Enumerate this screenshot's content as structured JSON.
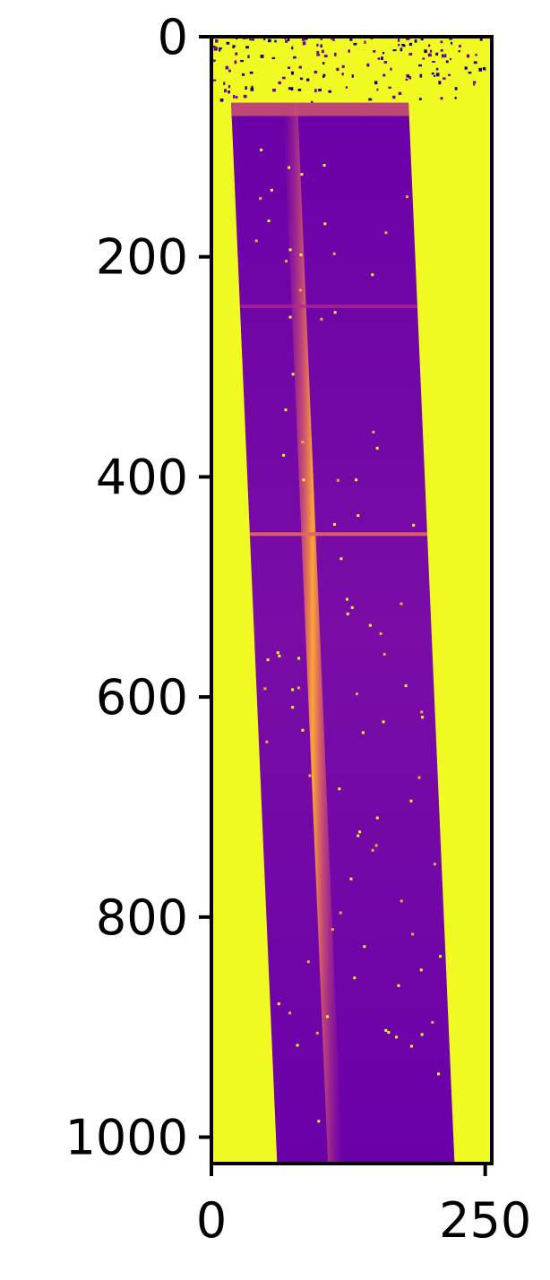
{
  "chart_data": {
    "type": "heatmap",
    "title": "",
    "xlabel": "",
    "ylabel": "",
    "colormap": "plasma",
    "xlim": [
      0,
      256
    ],
    "ylim": [
      1024,
      0
    ],
    "x_ticks": [
      0,
      250
    ],
    "x_tick_labels": [
      "0",
      "250"
    ],
    "y_ticks": [
      0,
      200,
      400,
      600,
      800,
      1000
    ],
    "y_tick_labels": [
      "0",
      "200",
      "400",
      "600",
      "800",
      "1000"
    ],
    "grid": false,
    "legend": "none",
    "image_features": {
      "background_level": "saturated high (yellow)",
      "noisy_region_rows": [
        0,
        40
      ],
      "slit_band": {
        "row_start": 60,
        "row_end": 1024,
        "left_edge_start_col": 18,
        "left_edge_end_col": 60,
        "right_edge_start_col": 180,
        "right_edge_end_col": 222,
        "level": "low (purple)"
      },
      "bright_trace": {
        "row_start": 60,
        "row_end": 1024,
        "start_col": 72,
        "end_col": 113,
        "level": "high (orange)"
      },
      "horizontal_emission_lines": [
        {
          "row": 245,
          "level": "faint"
        },
        {
          "row": 452,
          "level": "moderate"
        }
      ]
    },
    "colors": {
      "high": "#f0f921",
      "mid_high": "#fca636",
      "mid": "#e16462",
      "mid_low": "#b12a90",
      "low": "#6a00a8",
      "lowest": "#0d0887"
    }
  }
}
